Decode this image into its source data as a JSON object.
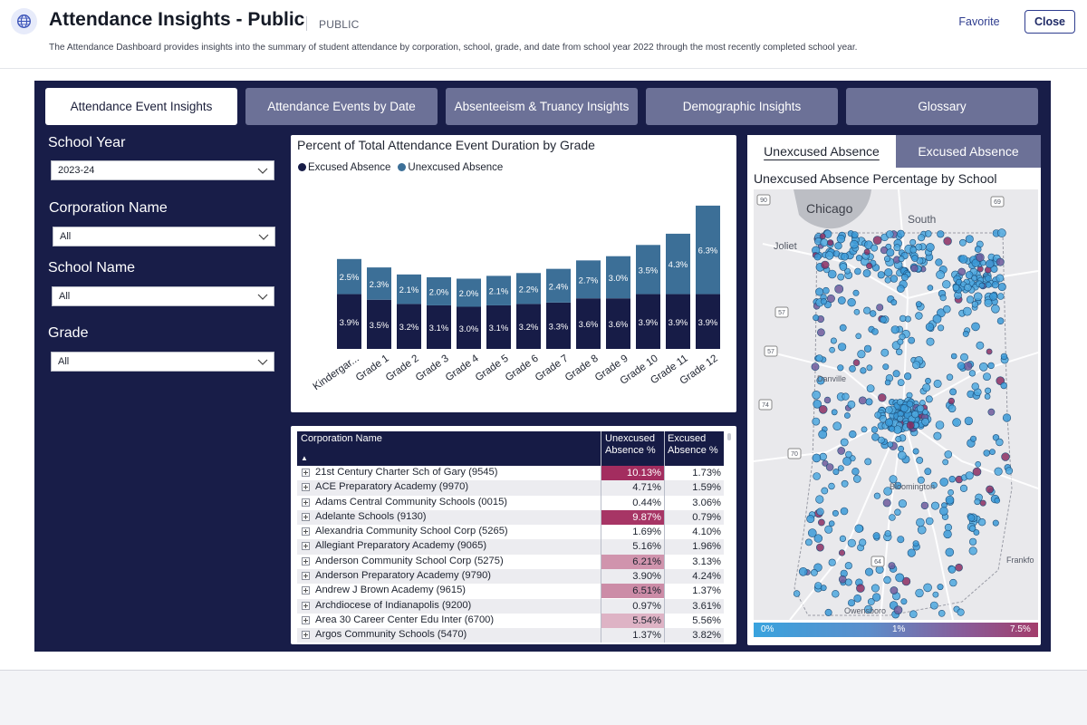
{
  "header": {
    "title": "Attendance Insights - Public",
    "badge": "PUBLIC",
    "description": "The Attendance Dashboard provides insights into the summary of student attendance by corporation, school, grade, and date from school year 2022 through the most recently completed school year.",
    "favorite_label": "Favorite",
    "close_label": "Close",
    "icon": "globe-icon"
  },
  "tabs": [
    {
      "label": "Attendance Event Insights",
      "active": true
    },
    {
      "label": "Attendance Events by Date",
      "active": false
    },
    {
      "label": "Absenteeism & Truancy Insights",
      "active": false
    },
    {
      "label": "Demographic Insights",
      "active": false
    },
    {
      "label": "Glossary",
      "active": false
    }
  ],
  "filters": {
    "school_year": {
      "label": "School Year",
      "value": "2023-24"
    },
    "corporation": {
      "label": "Corporation Name",
      "value": "All"
    },
    "school": {
      "label": "School Name",
      "value": "All"
    },
    "grade": {
      "label": "Grade",
      "value": "All"
    }
  },
  "colors": {
    "excused": "#171c47",
    "unexcused": "#3c6f97",
    "dashboard_bg": "#181d48",
    "tab_inactive": "#6c7197",
    "scale_low": "#39a3de",
    "scale_high": "#a33d6b"
  },
  "chart_data": {
    "type": "bar",
    "stacked": true,
    "title": "Percent of Total Attendance Event Duration by Grade",
    "legend": [
      "Excused Absence",
      "Unexcused Absence"
    ],
    "legend_position": "top-left",
    "categories": [
      "Kindergar...",
      "Grade 1",
      "Grade 2",
      "Grade 3",
      "Grade 4",
      "Grade 5",
      "Grade 6",
      "Grade 7",
      "Grade 8",
      "Grade 9",
      "Grade 10",
      "Grade 11",
      "Grade 12"
    ],
    "series": [
      {
        "name": "Excused Absence",
        "values": [
          3.9,
          3.5,
          3.2,
          3.1,
          3.0,
          3.1,
          3.2,
          3.3,
          3.6,
          3.6,
          3.9,
          3.9,
          3.9
        ]
      },
      {
        "name": "Unexcused Absence",
        "values": [
          2.5,
          2.3,
          2.1,
          2.0,
          2.0,
          2.1,
          2.2,
          2.4,
          2.7,
          3.0,
          3.5,
          4.3,
          6.3
        ]
      }
    ],
    "value_suffix": "%",
    "grid": false
  },
  "table": {
    "columns": [
      "Corporation Name",
      "Unexcused Absence %",
      "Excused Absence %"
    ],
    "sort_indicator": "▲",
    "rows": [
      {
        "name": "21st Century Charter Sch of Gary (9545)",
        "unexcused": "10.13%",
        "excused": "1.73%",
        "unexcused_level": 1.0
      },
      {
        "name": "ACE Preparatory Academy (9970)",
        "unexcused": "4.71%",
        "excused": "1.59%",
        "unexcused_level": 0.0
      },
      {
        "name": "Adams Central Community Schools (0015)",
        "unexcused": "0.44%",
        "excused": "3.06%",
        "unexcused_level": 0.0
      },
      {
        "name": "Adelante Schools (9130)",
        "unexcused": "9.87%",
        "excused": "0.79%",
        "unexcused_level": 0.95
      },
      {
        "name": "Alexandria Community School Corp (5265)",
        "unexcused": "1.69%",
        "excused": "4.10%",
        "unexcused_level": 0.0
      },
      {
        "name": "Allegiant Preparatory Academy (9065)",
        "unexcused": "5.16%",
        "excused": "1.96%",
        "unexcused_level": 0.0
      },
      {
        "name": "Anderson Community School Corp (5275)",
        "unexcused": "6.21%",
        "excused": "3.13%",
        "unexcused_level": 0.35
      },
      {
        "name": "Anderson Preparatory Academy (9790)",
        "unexcused": "3.90%",
        "excused": "4.24%",
        "unexcused_level": 0.0
      },
      {
        "name": "Andrew J Brown Academy (9615)",
        "unexcused": "6.51%",
        "excused": "1.37%",
        "unexcused_level": 0.4
      },
      {
        "name": "Archdiocese of Indianapolis (9200)",
        "unexcused": "0.97%",
        "excused": "3.61%",
        "unexcused_level": 0.0
      },
      {
        "name": "Area 30 Career Center Edu Inter (6700)",
        "unexcused": "5.54%",
        "excused": "5.56%",
        "unexcused_level": 0.15
      },
      {
        "name": "Argos Community Schools (5470)",
        "unexcused": "1.37%",
        "excused": "3.82%",
        "unexcused_level": 0.0
      }
    ]
  },
  "map": {
    "tabs": [
      {
        "label": "Unexcused Absence",
        "active": true
      },
      {
        "label": "Excused Absence",
        "active": false
      }
    ],
    "title": "Unexcused Absence Percentage by School",
    "place_labels": [
      "Chicago",
      "South",
      "Joliet",
      "Danville",
      "Bloomington",
      "Owensboro",
      "Frankfo"
    ],
    "road_labels": [
      "90",
      "69",
      "57",
      "57",
      "74",
      "70",
      "64"
    ],
    "scale": {
      "min": "0%",
      "mid": "1%",
      "max": "7.5%"
    }
  }
}
